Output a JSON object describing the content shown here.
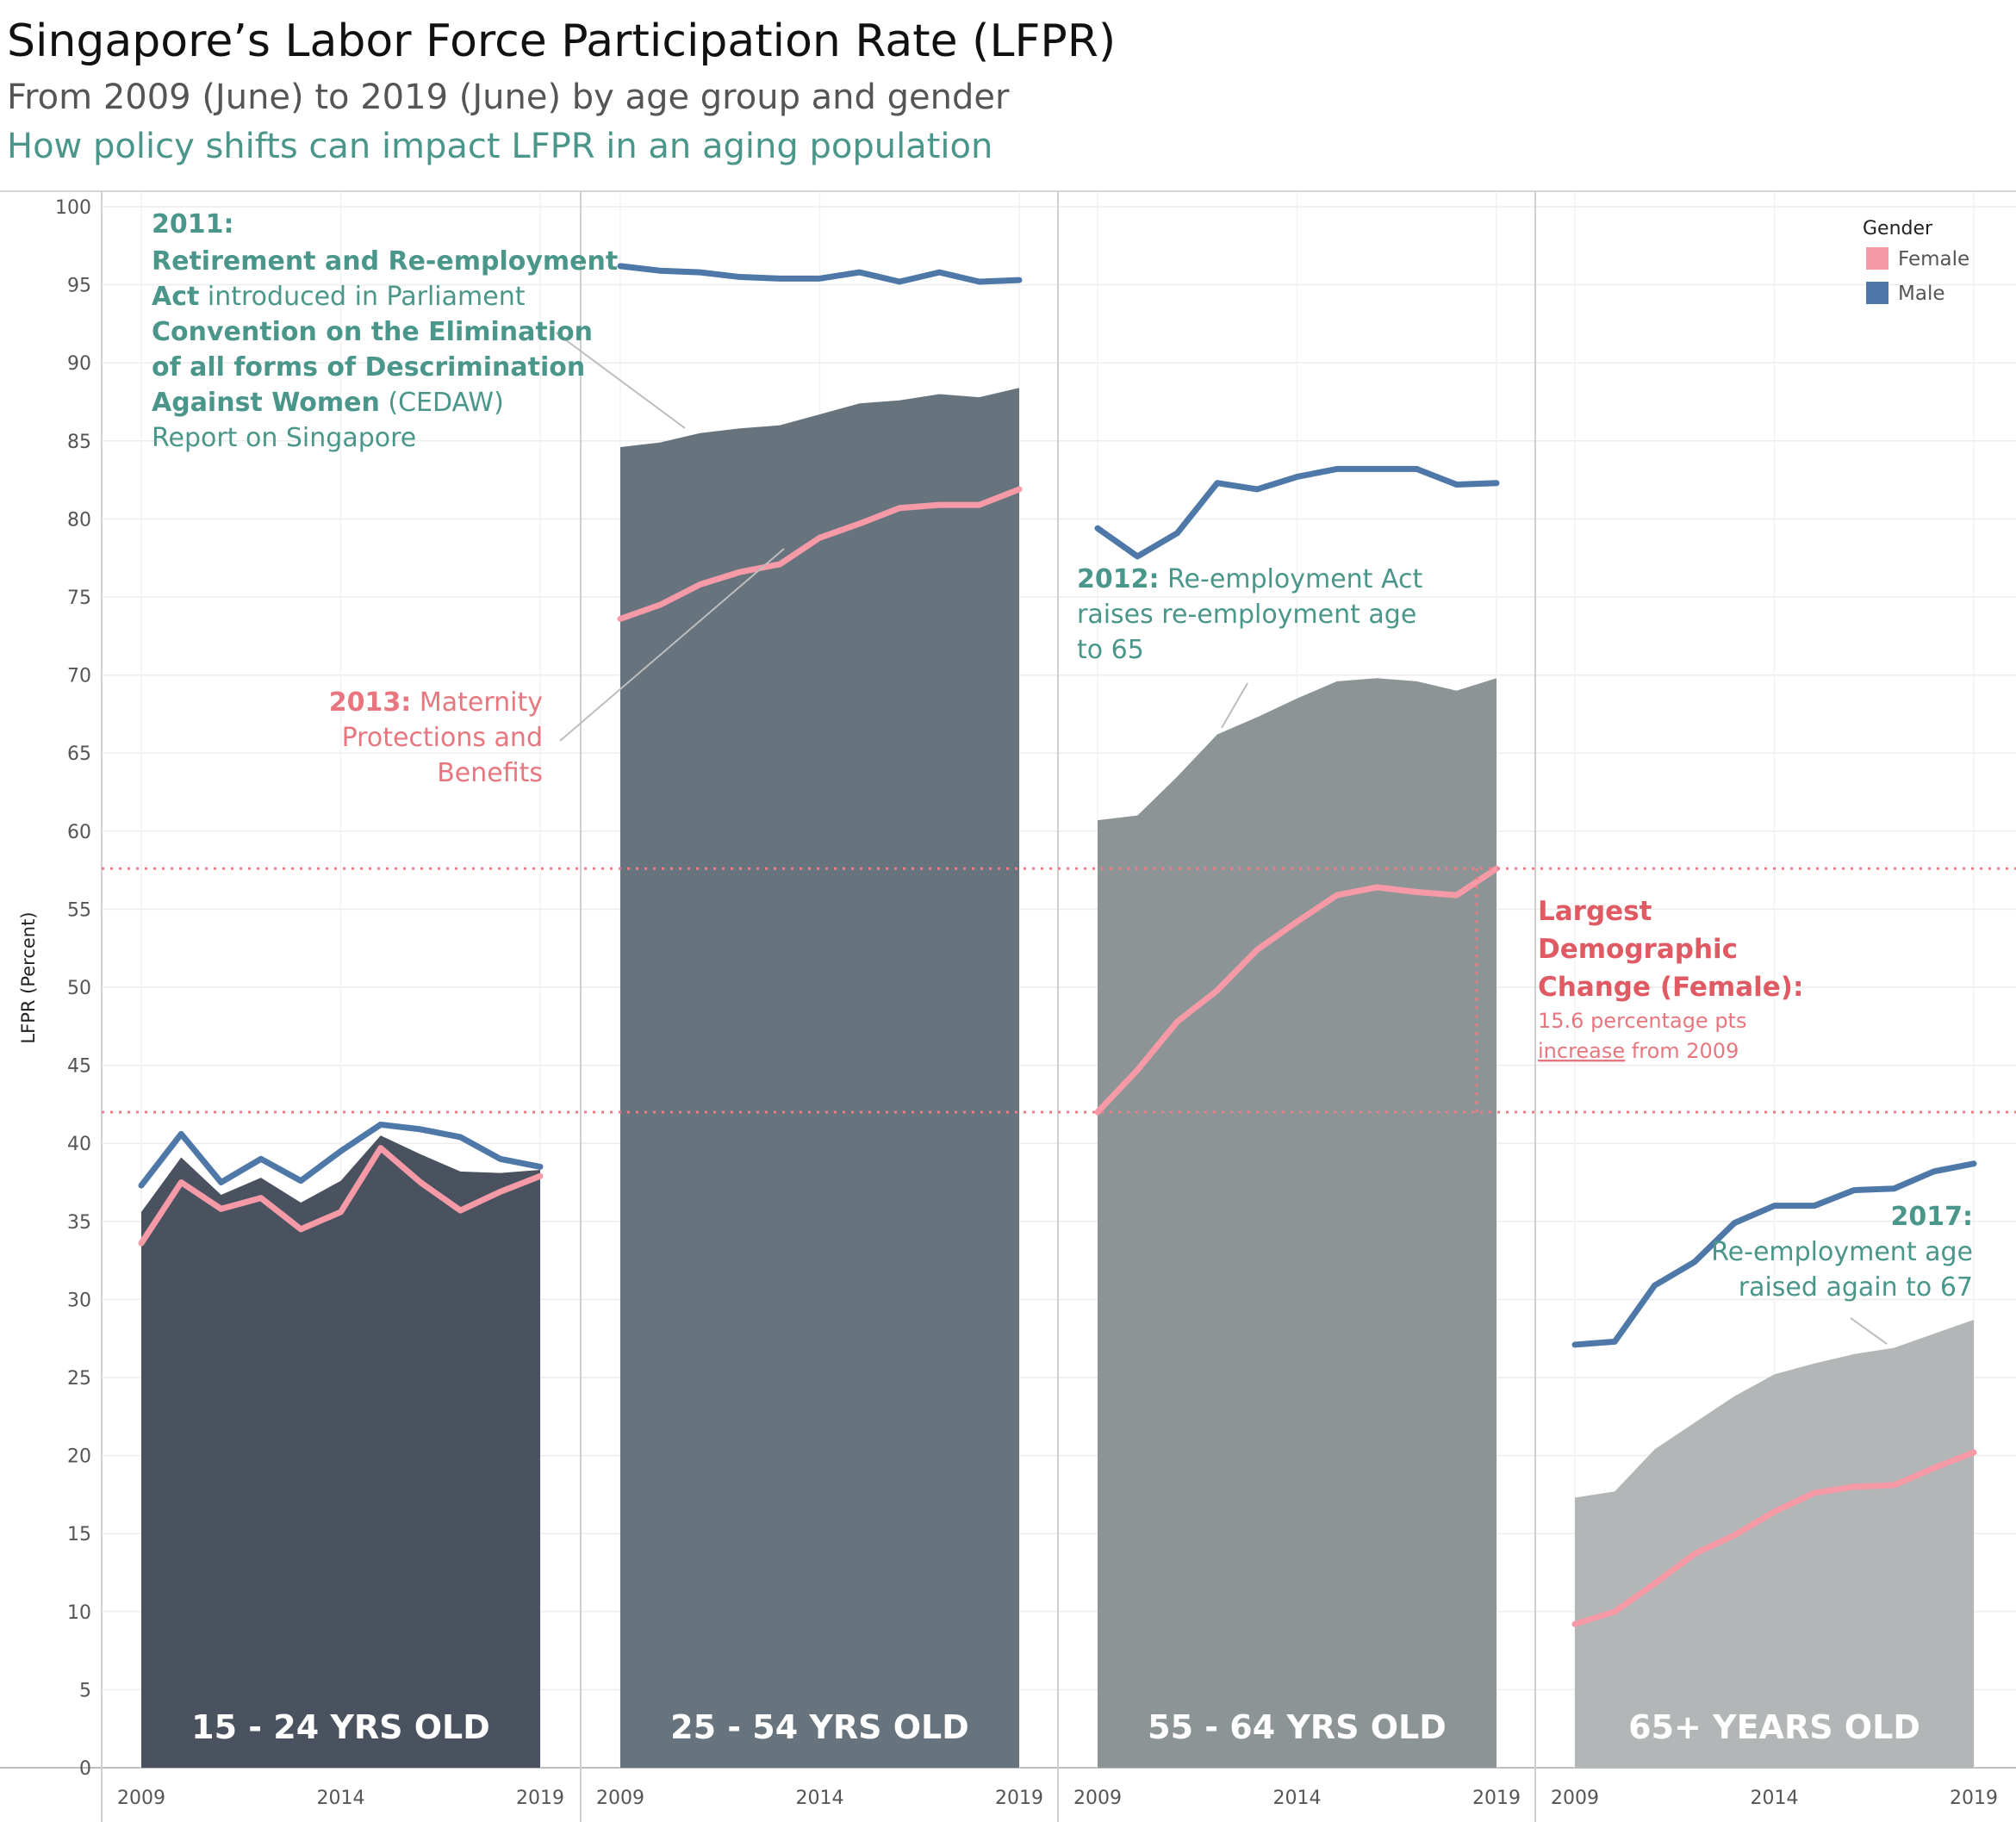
{
  "header": {
    "title": "Singapore’s Labor Force Participation Rate (LFPR)",
    "subtitle": "From 2009 (June) to 2019 (June) by age group and gender",
    "subtitle2": "How policy shifts can impact LFPR in an aging population"
  },
  "colors": {
    "female": "#f59aa6",
    "male": "#4d78a8",
    "panel_fills": [
      "#4a525f",
      "#67737d",
      "#8c9496",
      "#b3b6b7"
    ],
    "annotation_teal": "#4a968a",
    "annotation_pink": "#e8767f",
    "annotation_red": "#e05a64"
  },
  "legend": {
    "title": "Gender",
    "female": "Female",
    "male": "Male"
  },
  "annotations": {
    "a2011_year": "2011:",
    "a2011_line1": "Retirement and Re-employment",
    "a2011_line2_bold": "Act",
    "a2011_line2_rest": " introduced in Parliament",
    "a2011_line3": "Convention on the Elimination",
    "a2011_line4": "of all forms of Descrimination",
    "a2011_line5_bold": "Against Women",
    "a2011_line5_rest": " (CEDAW)",
    "a2011_line6": "Report on Singapore",
    "a2013_year": "2013:",
    "a2013_line1_rest": " Maternity",
    "a2013_line2": "Protections and",
    "a2013_line3": "Benefits",
    "a2012_year": "2012:",
    "a2012_line1_rest": " Re-employment Act",
    "a2012_line2": "raises re-employment age",
    "a2012_line3": "to 65",
    "largest_line1": "Largest",
    "largest_line2": "Demographic",
    "largest_line3": "Change (Female):",
    "largest_line4": "15.6 percentage pts",
    "largest_line5_u": "increase",
    "largest_line5_rest": " from 2009",
    "a2017_year": "2017:",
    "a2017_line1": "Re-employment age",
    "a2017_line2": "raised again to 67"
  },
  "chart_data": {
    "type": "area",
    "ylabel": "LFPR (Percent)",
    "ylim": [
      0,
      100
    ],
    "yticks": [
      0,
      5,
      10,
      15,
      20,
      25,
      30,
      35,
      40,
      45,
      50,
      55,
      60,
      65,
      70,
      75,
      80,
      85,
      90,
      95,
      100
    ],
    "x": [
      2009,
      2010,
      2011,
      2012,
      2013,
      2014,
      2015,
      2016,
      2017,
      2018,
      2019
    ],
    "xticks": [
      2009,
      2014,
      2019
    ],
    "reference_lines": [
      42.0,
      57.6
    ],
    "panels": [
      {
        "label": "15 - 24 YRS OLD",
        "total": [
          35.6,
          39.1,
          36.7,
          37.8,
          36.2,
          37.6,
          40.5,
          39.3,
          38.2,
          38.1,
          38.3
        ],
        "series": [
          {
            "name": "Male",
            "values": [
              37.3,
              40.6,
              37.5,
              39.0,
              37.6,
              39.5,
              41.2,
              40.9,
              40.4,
              39.0,
              38.5
            ]
          },
          {
            "name": "Female",
            "values": [
              33.6,
              37.5,
              35.8,
              36.5,
              34.5,
              35.6,
              39.7,
              37.5,
              35.7,
              36.9,
              37.9
            ]
          }
        ]
      },
      {
        "label": "25 - 54 YRS OLD",
        "total": [
          84.6,
          84.9,
          85.5,
          85.8,
          86.0,
          86.7,
          87.4,
          87.6,
          88.0,
          87.8,
          88.4
        ],
        "series": [
          {
            "name": "Male",
            "values": [
              96.2,
              95.9,
              95.8,
              95.5,
              95.4,
              95.4,
              95.8,
              95.2,
              95.8,
              95.2,
              95.3
            ]
          },
          {
            "name": "Female",
            "values": [
              73.6,
              74.5,
              75.8,
              76.6,
              77.1,
              78.8,
              79.7,
              80.7,
              80.9,
              80.9,
              81.9
            ]
          }
        ]
      },
      {
        "label": "55 - 64 YRS OLD",
        "total": [
          60.7,
          61.0,
          63.5,
          66.2,
          67.3,
          68.5,
          69.6,
          69.8,
          69.6,
          69.0,
          69.8
        ],
        "series": [
          {
            "name": "Male",
            "values": [
              79.4,
              77.6,
              79.1,
              82.3,
              81.9,
              82.7,
              83.2,
              83.2,
              83.2,
              82.2,
              82.3
            ]
          },
          {
            "name": "Female",
            "values": [
              42.0,
              44.7,
              47.8,
              49.8,
              52.4,
              54.2,
              55.9,
              56.4,
              56.1,
              55.9,
              57.6
            ]
          }
        ]
      },
      {
        "label": "65+ YEARS OLD",
        "total": [
          17.3,
          17.7,
          20.4,
          22.1,
          23.8,
          25.2,
          25.9,
          26.5,
          26.9,
          27.8,
          28.7
        ],
        "series": [
          {
            "name": "Male",
            "values": [
              27.1,
              27.3,
              30.9,
              32.4,
              34.9,
              36.0,
              36.0,
              37.0,
              37.1,
              38.2,
              38.7
            ]
          },
          {
            "name": "Female",
            "values": [
              9.2,
              10.0,
              11.8,
              13.7,
              14.9,
              16.4,
              17.6,
              18.0,
              18.1,
              19.2,
              20.2
            ]
          }
        ]
      }
    ]
  }
}
